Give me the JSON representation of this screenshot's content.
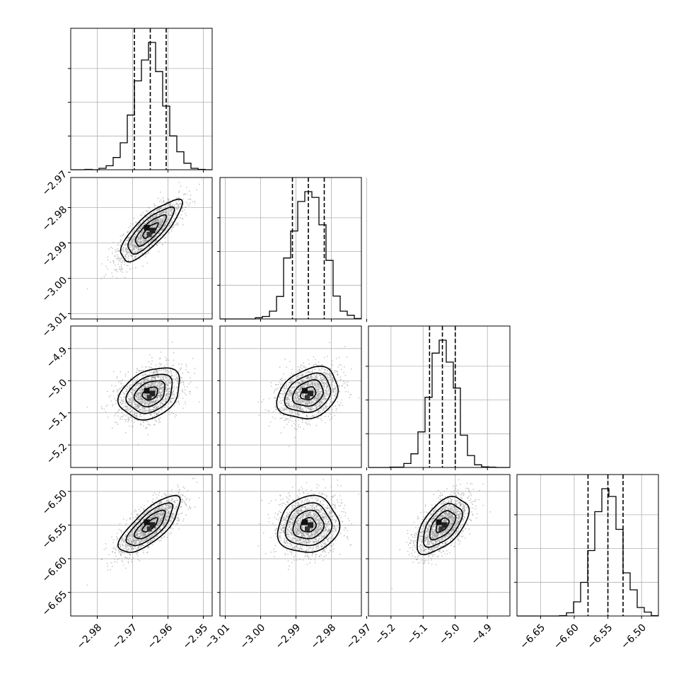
{
  "chart_data": {
    "type": "corner",
    "description_free": true,
    "grid": true,
    "parameters": [
      {
        "range": [
          -2.9875,
          -2.9475
        ],
        "ticks": [
          -2.98,
          -2.97,
          -2.96,
          -2.95
        ],
        "tick_labels": [
          "−2.98",
          "−2.97",
          "−2.96",
          "−2.95"
        ],
        "mean": -2.965,
        "sd": 0.0043,
        "quantiles": [
          -2.9695,
          -2.965,
          -2.9605
        ]
      },
      {
        "range": [
          -3.0115,
          -2.9715
        ],
        "ticks": [
          -3.01,
          -3.0,
          -2.99,
          -2.98,
          -2.97
        ],
        "tick_labels": [
          "−3.01",
          "−3.00",
          "−2.99",
          "−2.98",
          "−2.97"
        ],
        "mean": -2.9865,
        "sd": 0.0043,
        "quantiles": [
          -2.991,
          -2.9865,
          -2.982
        ]
      },
      {
        "range": [
          -5.27,
          -4.83
        ],
        "ticks": [
          -5.2,
          -5.1,
          -5.0,
          -4.9
        ],
        "tick_labels": [
          "−5.2",
          "−5.1",
          "−5.0",
          "−4.9"
        ],
        "mean": -5.04,
        "sd": 0.04,
        "quantiles": [
          -5.08,
          -5.04,
          -5.0
        ]
      },
      {
        "range": [
          -6.685,
          -6.475
        ],
        "ticks": [
          -6.65,
          -6.6,
          -6.55,
          -6.5
        ],
        "tick_labels": [
          "−6.65",
          "−6.60",
          "−6.55",
          "−6.50"
        ],
        "mean": -6.55,
        "sd": 0.021,
        "quantiles": [
          -6.5795,
          -6.55,
          -6.5275
        ]
      }
    ],
    "correlations": [
      {
        "i": 1,
        "j": 0,
        "rho": 0.8
      },
      {
        "i": 2,
        "j": 0,
        "rho": 0.3
      },
      {
        "i": 2,
        "j": 1,
        "rho": 0.25
      },
      {
        "i": 3,
        "j": 0,
        "rho": 0.75
      },
      {
        "i": 3,
        "j": 1,
        "rho": 0.1
      },
      {
        "i": 3,
        "j": 2,
        "rho": 0.55
      }
    ],
    "hist_bins": 20,
    "samples_shown": 1800
  }
}
